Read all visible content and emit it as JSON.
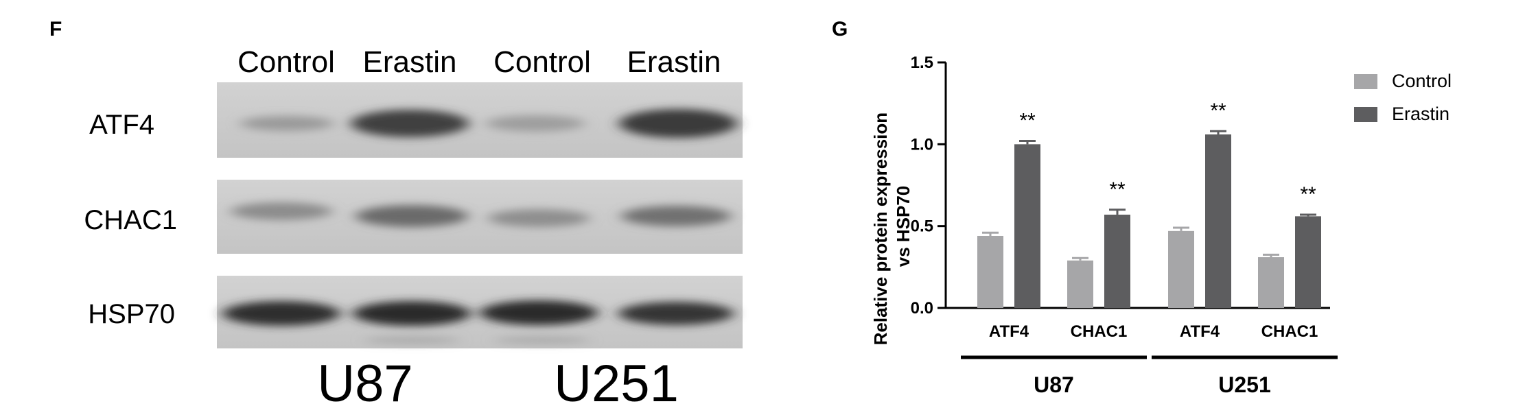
{
  "panels": {
    "f": {
      "letter": "F",
      "column_labels": [
        "Control",
        "Erastin",
        "Control",
        "Erastin"
      ],
      "row_labels": [
        "ATF4",
        "CHAC1",
        "HSP70"
      ],
      "cell_lines": [
        "U87",
        "U251"
      ]
    },
    "g": {
      "letter": "G",
      "significance_mark": "**",
      "group_labels": [
        "U87",
        "U251"
      ]
    }
  },
  "chart_data": {
    "type": "bar",
    "title": "",
    "xlabel": "",
    "ylabel": "Relative protein expression vs HSP70",
    "ylim": [
      0,
      1.5
    ],
    "yticks": [
      "0.0",
      "0.5",
      "1.0",
      "1.5"
    ],
    "categories": [
      "ATF4",
      "CHAC1",
      "ATF4",
      "CHAC1"
    ],
    "groups": [
      {
        "label": "U87",
        "categories": [
          0,
          1
        ]
      },
      {
        "label": "U251",
        "categories": [
          2,
          3
        ]
      }
    ],
    "legend_position": "top-right",
    "grid": false,
    "series": [
      {
        "name": "Control",
        "color": "#a6a6a8",
        "values": [
          0.44,
          0.29,
          0.47,
          0.31
        ],
        "errors": [
          0.02,
          0.015,
          0.02,
          0.015
        ]
      },
      {
        "name": "Erastin",
        "color": "#5d5d5f",
        "values": [
          1.0,
          0.57,
          1.06,
          0.56
        ],
        "errors": [
          0.02,
          0.03,
          0.02,
          0.01
        ]
      }
    ],
    "annotations": [
      {
        "series": "Erastin",
        "category_index": 0,
        "text": "**"
      },
      {
        "series": "Erastin",
        "category_index": 1,
        "text": "**"
      },
      {
        "series": "Erastin",
        "category_index": 2,
        "text": "**"
      },
      {
        "series": "Erastin",
        "category_index": 3,
        "text": "**"
      }
    ]
  }
}
